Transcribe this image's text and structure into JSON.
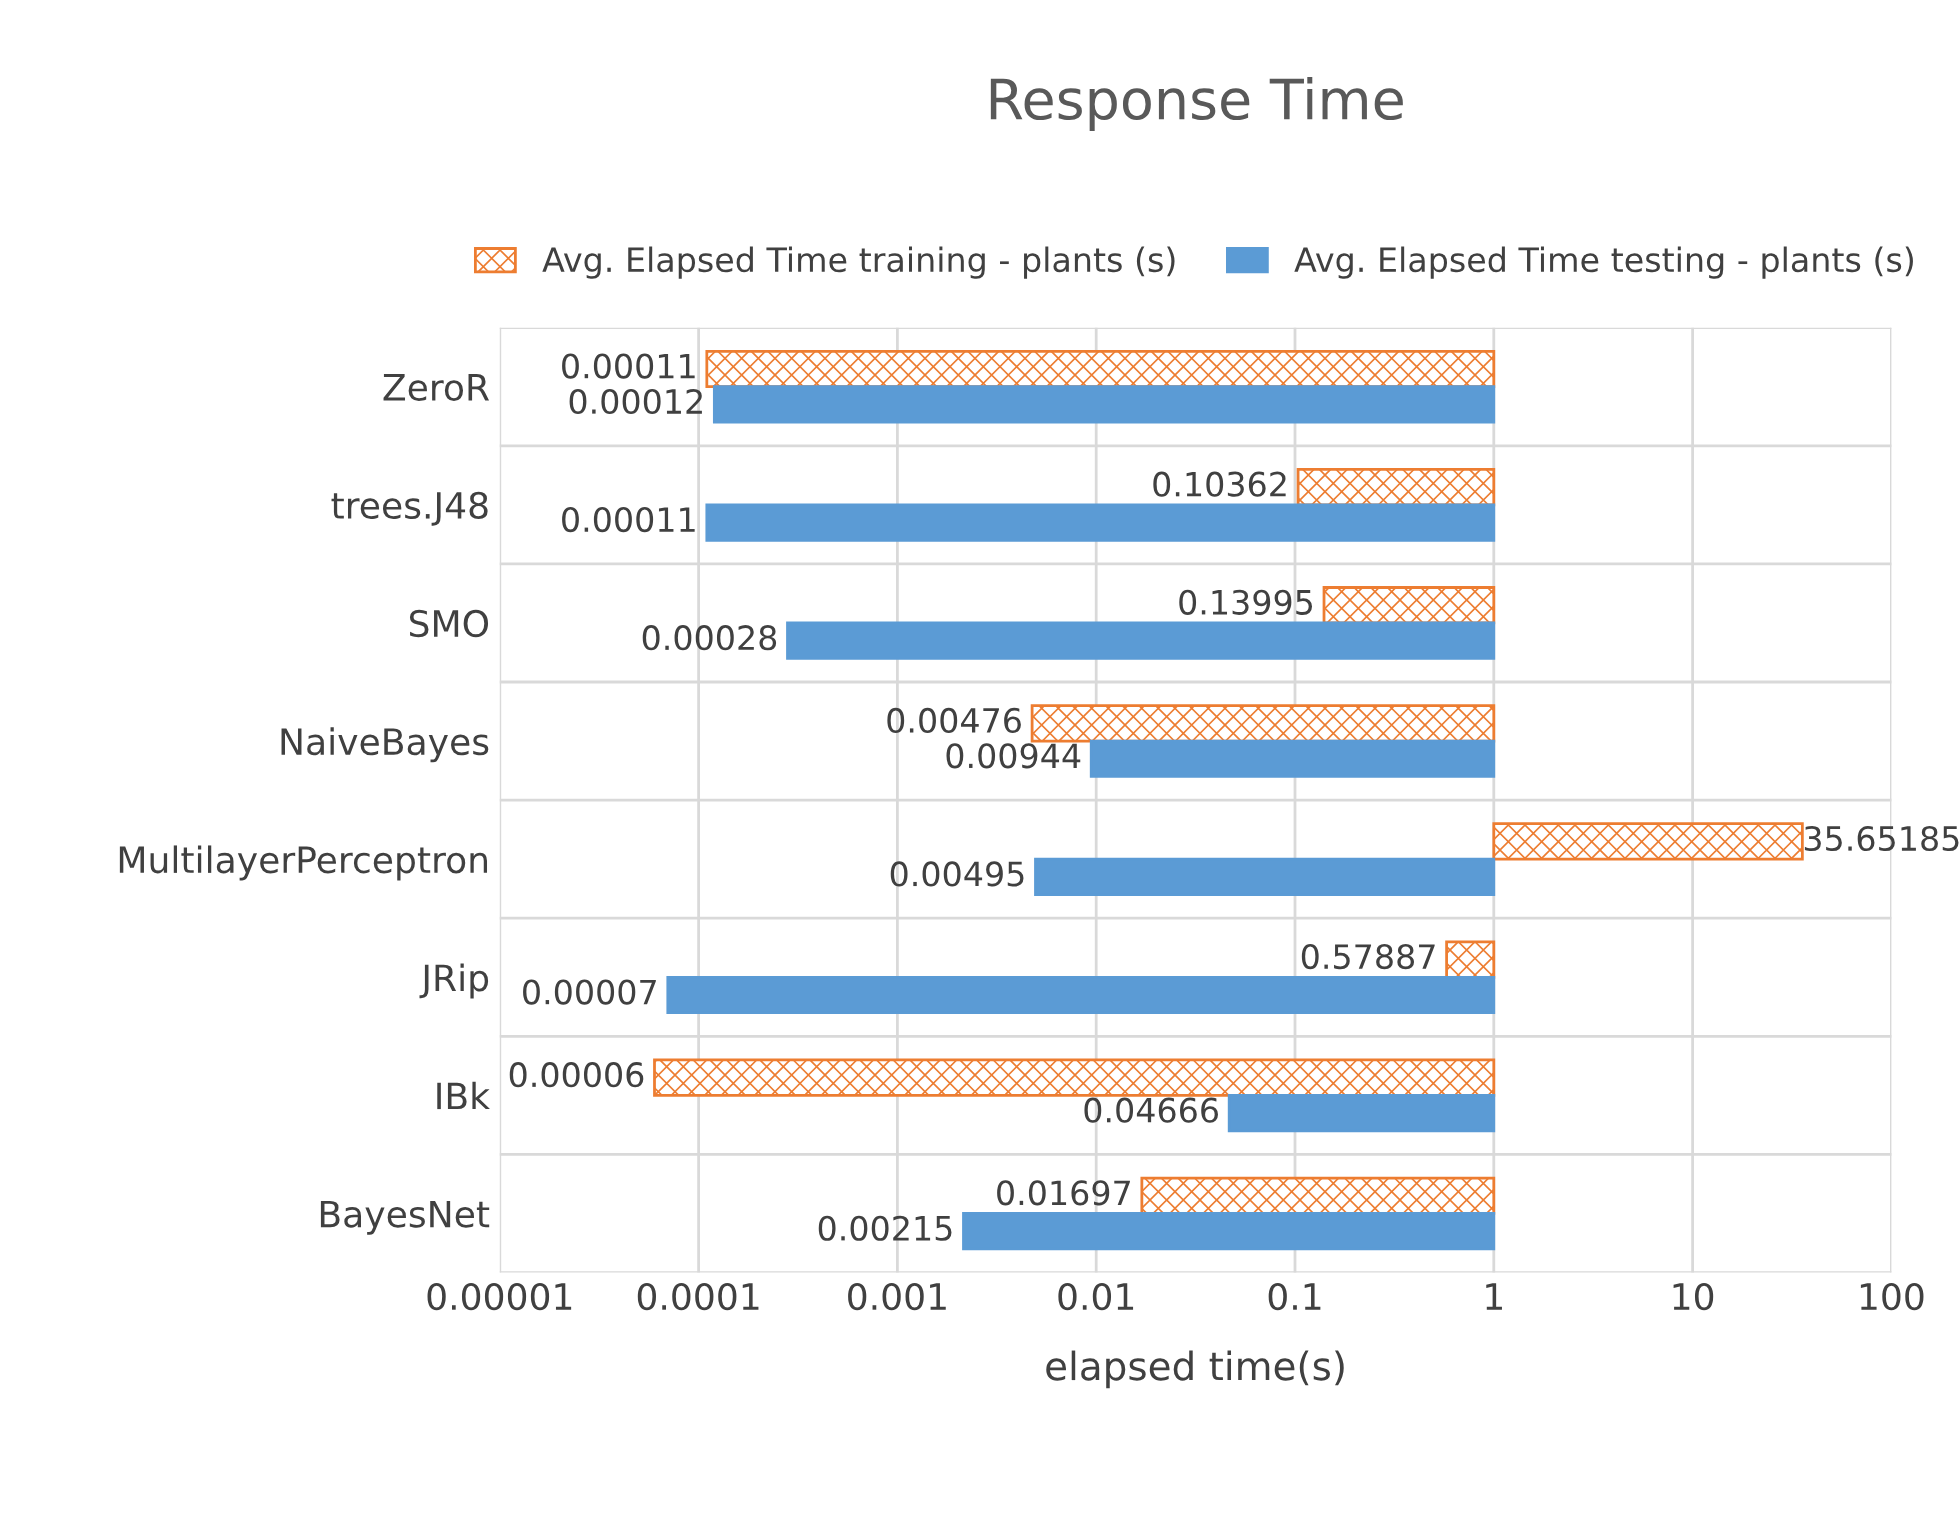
{
  "chart_data": {
    "type": "bar",
    "orientation": "horizontal",
    "title": "Response Time",
    "xlabel": "elapsed time(s)",
    "categories": [
      "ZeroR",
      "trees.J48",
      "SMO",
      "NaiveBayes",
      "MultilayerPerceptron",
      "JRip",
      "IBk",
      "BayesNet"
    ],
    "series": [
      {
        "name": "Avg. Elapsed Time training - plants (s)",
        "color": "#ed7d31",
        "base": [
          1,
          1,
          1,
          1,
          1,
          1,
          1,
          1
        ],
        "values": [
          -0.99989,
          -0.89638,
          -0.86005,
          -0.99524,
          34.65185,
          -0.42113,
          -0.99994,
          -0.98303
        ],
        "value_labels": [
          "0.00011",
          "0.10362",
          "0.13995",
          "0.00476",
          "35.65185",
          "0.57887",
          "0.00006",
          "0.01697"
        ]
      },
      {
        "name": "Avg. Elapsed Time testing - plants (s)",
        "color": "#5b9bd5",
        "base": [
          1,
          1,
          1,
          1,
          1,
          1,
          1,
          1
        ],
        "values": [
          -0.99988,
          -0.99989,
          -0.99972,
          -0.99056,
          -0.99505,
          -0.99993,
          -0.95334,
          -0.99785
        ],
        "value_labels": [
          "0.00012",
          "0.00011",
          "0.00028",
          "0.00944",
          "0.00495",
          "0.00007",
          "0.04666",
          "0.00215"
        ]
      }
    ],
    "log": "x",
    "xlim": [
      1e-05,
      100
    ],
    "xticks": [
      {
        "value": 1e-05,
        "label": "0.00001"
      },
      {
        "value": 0.0001,
        "label": "0.0001"
      },
      {
        "value": 0.001,
        "label": "0.001"
      },
      0.01,
      0.1,
      1,
      10,
      100
    ],
    "grid": true,
    "legend": "top"
  }
}
